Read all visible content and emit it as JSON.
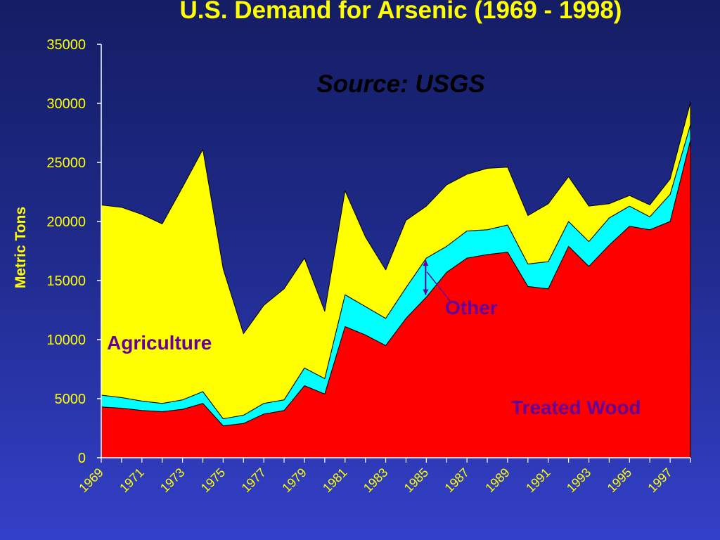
{
  "chart_data": {
    "type": "area",
    "stacked": true,
    "title": "U.S. Demand for Arsenic (1969 - 1998)",
    "subtitle": "Source:  USGS",
    "xlabel": "",
    "ylabel": "Metric Tons",
    "ylim": [
      0,
      35000
    ],
    "yticks": [
      0,
      5000,
      10000,
      15000,
      20000,
      25000,
      30000,
      35000
    ],
    "xticks": [
      "1969",
      "1971",
      "1973",
      "1975",
      "1977",
      "1979",
      "1981",
      "1983",
      "1985",
      "1987",
      "1989",
      "1991",
      "1993",
      "1995",
      "1997"
    ],
    "x": [
      1969,
      1970,
      1971,
      1972,
      1973,
      1974,
      1975,
      1976,
      1977,
      1978,
      1979,
      1980,
      1981,
      1982,
      1983,
      1984,
      1985,
      1986,
      1987,
      1988,
      1989,
      1990,
      1991,
      1992,
      1993,
      1994,
      1995,
      1996,
      1997,
      1998
    ],
    "grid": false,
    "legend": "none",
    "series": [
      {
        "name": "Treated Wood",
        "color": "#ff0000",
        "values": [
          4300,
          4200,
          4000,
          3900,
          4100,
          4600,
          2700,
          2900,
          3700,
          4000,
          6100,
          5400,
          11100,
          10400,
          9500,
          11800,
          13600,
          15700,
          16900,
          17200,
          17400,
          14500,
          14300,
          17900,
          16200,
          18000,
          19600,
          19300,
          20000,
          26900
        ]
      },
      {
        "name": "Other",
        "color": "#00ffff",
        "values": [
          1000,
          900,
          800,
          700,
          800,
          1000,
          600,
          700,
          900,
          900,
          1500,
          1300,
          2700,
          2400,
          2300,
          2600,
          3300,
          2200,
          2300,
          2100,
          2300,
          1900,
          2300,
          2100,
          2100,
          2300,
          1700,
          1100,
          2300,
          1300
        ]
      },
      {
        "name": "Agriculture",
        "color": "#ffff00",
        "values": [
          16100,
          16100,
          15800,
          15200,
          18000,
          20500,
          12700,
          6900,
          8300,
          9400,
          9300,
          5700,
          8800,
          5900,
          4100,
          5700,
          4400,
          5200,
          4800,
          5200,
          4900,
          4100,
          4900,
          3800,
          3000,
          1200,
          900,
          1000,
          1300,
          1900
        ]
      }
    ],
    "annotations": [
      {
        "text": "Agriculture",
        "color": "#660099"
      },
      {
        "text": "Other",
        "color": "#660099"
      },
      {
        "text": "Treated Wood",
        "color": "#660099"
      }
    ]
  }
}
